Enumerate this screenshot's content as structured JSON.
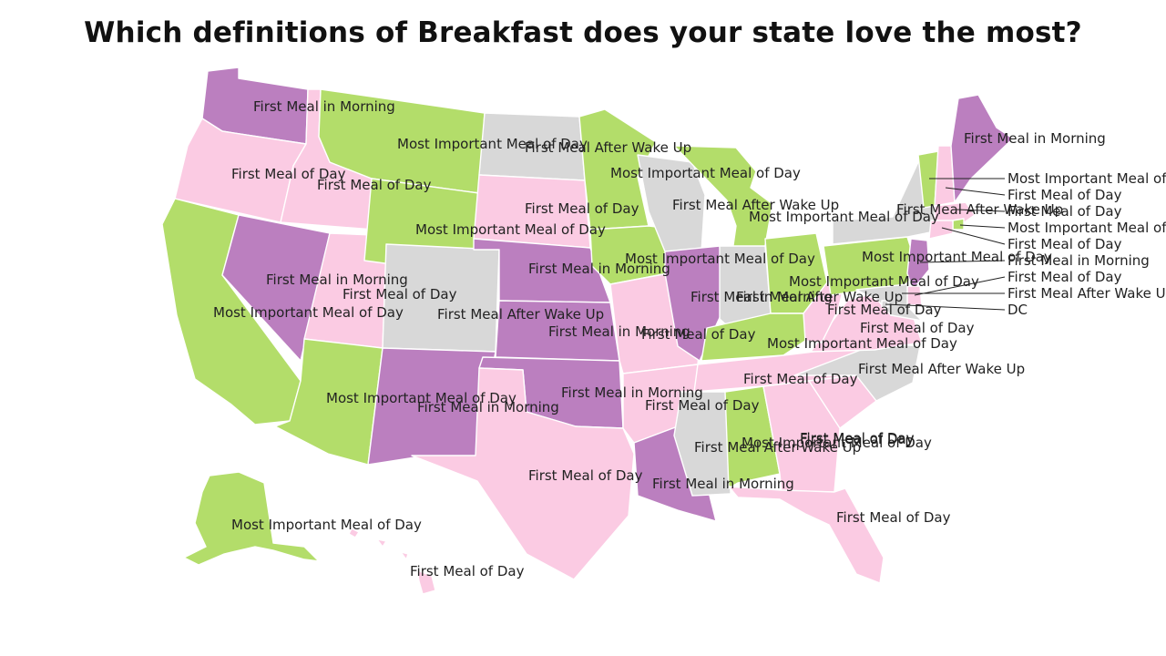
{
  "title": "Which definitions of Breakfast does your state love the most?",
  "categories": {
    "first_meal_of_day": {
      "label": "First Meal of Day",
      "color": "#fbcbe3"
    },
    "most_important": {
      "label": "Most Important Meal of Day",
      "color": "#b3dd6a"
    },
    "first_meal_in_morning": {
      "label": "First Meal in Morning",
      "color": "#bb7fbf"
    },
    "first_meal_after_wake_up": {
      "label": "First Meal After Wake Up",
      "color": "#d8d8d8"
    }
  },
  "states": [
    {
      "id": "WA",
      "category": "first_meal_in_morning",
      "label": "First Meal in Morning"
    },
    {
      "id": "OR",
      "category": "first_meal_of_day",
      "label": "First Meal of Day"
    },
    {
      "id": "CA",
      "category": "most_important",
      "label": "Most Important Meal of Day"
    },
    {
      "id": "ID",
      "category": "first_meal_of_day",
      "label": "First Meal of Day"
    },
    {
      "id": "NV",
      "category": "first_meal_in_morning",
      "label": "First Meal in Morning"
    },
    {
      "id": "UT",
      "category": "first_meal_of_day",
      "label": "First Meal of Day"
    },
    {
      "id": "AZ",
      "category": "most_important",
      "label": "Most Important Meal of Day"
    },
    {
      "id": "MT",
      "category": "most_important",
      "label": "Most Important Meal of Day"
    },
    {
      "id": "WY",
      "category": "most_important",
      "label": "Most Important Meal of Day"
    },
    {
      "id": "CO",
      "category": "first_meal_after_wake_up",
      "label": "First Meal After Wake Up"
    },
    {
      "id": "NM",
      "category": "first_meal_in_morning",
      "label": "First Meal in Morning"
    },
    {
      "id": "ND",
      "category": "first_meal_after_wake_up",
      "label": "First Meal After Wake Up"
    },
    {
      "id": "SD",
      "category": "first_meal_of_day",
      "label": "First Meal of Day"
    },
    {
      "id": "NE",
      "category": "first_meal_in_morning",
      "label": "First Meal in Morning"
    },
    {
      "id": "KS",
      "category": "first_meal_in_morning",
      "label": "First Meal in Morning"
    },
    {
      "id": "OK",
      "category": "first_meal_in_morning",
      "label": "First Meal in Morning"
    },
    {
      "id": "TX",
      "category": "first_meal_of_day",
      "label": "First Meal of Day"
    },
    {
      "id": "MN",
      "category": "most_important",
      "label": "Most Important Meal of Day"
    },
    {
      "id": "IA",
      "category": "most_important",
      "label": "Most Important Meal of Day"
    },
    {
      "id": "MO",
      "category": "first_meal_of_day",
      "label": "First Meal of Day"
    },
    {
      "id": "AR",
      "category": "first_meal_of_day",
      "label": "First Meal of Day"
    },
    {
      "id": "LA",
      "category": "first_meal_in_morning",
      "label": "First Meal in Morning"
    },
    {
      "id": "WI",
      "category": "first_meal_after_wake_up",
      "label": "First Meal After Wake Up"
    },
    {
      "id": "IL",
      "category": "first_meal_in_morning",
      "label": "First Meal in Morning"
    },
    {
      "id": "MI",
      "category": "most_important",
      "label": "Most Important Meal of Day"
    },
    {
      "id": "IN",
      "category": "first_meal_after_wake_up",
      "label": "First Meal After Wake Up"
    },
    {
      "id": "OH",
      "category": "most_important",
      "label": "Most Important Meal of Day"
    },
    {
      "id": "KY",
      "category": "most_important",
      "label": "Most Important Meal of Day"
    },
    {
      "id": "TN",
      "category": "first_meal_of_day",
      "label": "First Meal of Day"
    },
    {
      "id": "MS",
      "category": "first_meal_after_wake_up",
      "label": "First Meal After Wake Up"
    },
    {
      "id": "AL",
      "category": "most_important",
      "label": "Most Important Meal of Day"
    },
    {
      "id": "GA",
      "category": "first_meal_of_day",
      "label": "First Meal of Day"
    },
    {
      "id": "FL",
      "category": "first_meal_of_day",
      "label": "First Meal of Day"
    },
    {
      "id": "SC",
      "category": "first_meal_of_day",
      "label": "First Meal of Day"
    },
    {
      "id": "NC",
      "category": "first_meal_after_wake_up",
      "label": "First Meal After Wake Up"
    },
    {
      "id": "VA",
      "category": "first_meal_of_day",
      "label": "First Meal of Day"
    },
    {
      "id": "WV",
      "category": "first_meal_of_day",
      "label": "First Meal of Day"
    },
    {
      "id": "PA",
      "category": "most_important",
      "label": "Most Important Meal of Day"
    },
    {
      "id": "NY",
      "category": "first_meal_after_wake_up",
      "label": "First Meal After Wake Up"
    },
    {
      "id": "VT",
      "category": "most_important",
      "label": "Most Important Meal of Day"
    },
    {
      "id": "NH",
      "category": "first_meal_of_day",
      "label": "First Meal of Day"
    },
    {
      "id": "ME",
      "category": "first_meal_in_morning",
      "label": "First Meal in Morning"
    },
    {
      "id": "MA",
      "category": "first_meal_of_day",
      "label": "First Meal of Day"
    },
    {
      "id": "RI",
      "category": "most_important",
      "label": "Most Important Meal of Day"
    },
    {
      "id": "CT",
      "category": "first_meal_of_day",
      "label": "First Meal of Day"
    },
    {
      "id": "NJ",
      "category": "first_meal_in_morning",
      "label": "First Meal in Morning"
    },
    {
      "id": "DE",
      "category": "first_meal_of_day",
      "label": "First Meal of Day"
    },
    {
      "id": "MD",
      "category": "first_meal_after_wake_up",
      "label": "First Meal After Wake Up"
    },
    {
      "id": "DC",
      "category": "first_meal_after_wake_up",
      "label": "DC"
    },
    {
      "id": "AK",
      "category": "most_important",
      "label": "Most Important Meal of Day"
    },
    {
      "id": "HI",
      "category": "first_meal_of_day",
      "label": "First Meal of Day"
    }
  ]
}
